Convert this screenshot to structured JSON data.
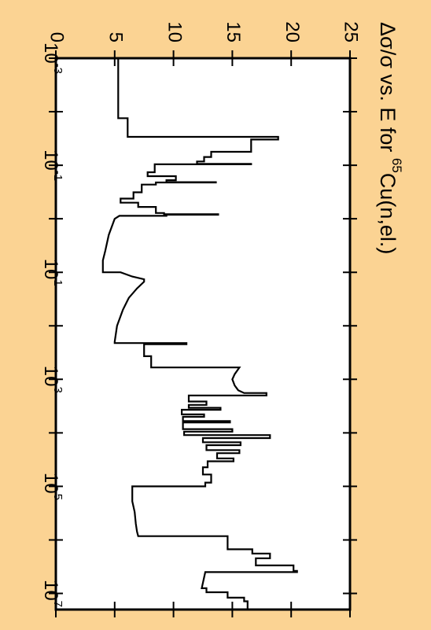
{
  "background_color": "#fbd393",
  "plot_background_color": "#ffffff",
  "line_color": "#000000",
  "chart_data": {
    "type": "line",
    "orientation": "rotated 90 degrees clockwise",
    "title_main": "Δσ/σ vs. E for ",
    "title_superscript": "65",
    "title_nuclide": "Cu(n,el.)",
    "x_scale": "log",
    "x_range": [
      0.001,
      20000000
    ],
    "x_ticks": [
      {
        "value": 0.001,
        "base": "10",
        "exponent": "-3"
      },
      {
        "value": 0.1,
        "base": "10",
        "exponent": "-1"
      },
      {
        "value": 10,
        "base": "10",
        "exponent": "1"
      },
      {
        "value": 1000,
        "base": "10",
        "exponent": "3"
      },
      {
        "value": 100000,
        "base": "10",
        "exponent": "5"
      },
      {
        "value": 10000000,
        "base": "10",
        "exponent": "7"
      }
    ],
    "y_range": [
      0,
      25
    ],
    "y_ticks": [
      "0",
      "5",
      "10",
      "15",
      "20",
      "25"
    ],
    "series": [
      {
        "step": true,
        "points": [
          [
            0.001,
            5.3
          ],
          [
            0.0132,
            5.3
          ],
          [
            0.0132,
            6.1
          ],
          [
            0.0295,
            6.1
          ],
          [
            0.0295,
            18.9
          ],
          [
            0.0331,
            18.9
          ],
          [
            0.0331,
            16.6
          ],
          [
            0.056,
            16.6
          ],
          [
            0.056,
            13.2
          ],
          [
            0.07,
            13.2
          ],
          [
            0.07,
            12.6
          ],
          [
            0.085,
            12.6
          ],
          [
            0.085,
            12.0
          ],
          [
            0.094,
            12.0
          ],
          [
            0.094,
            16.6
          ],
          [
            0.096,
            16.6
          ],
          [
            0.096,
            8.4
          ],
          [
            0.135,
            8.4
          ],
          [
            0.135,
            7.8
          ],
          [
            0.16,
            7.8
          ],
          [
            0.16,
            10.2
          ],
          [
            0.19,
            10.2
          ],
          [
            0.19,
            9.4
          ],
          [
            0.207,
            9.4
          ],
          [
            0.207,
            13.6
          ],
          [
            0.21,
            13.6
          ],
          [
            0.21,
            8.5
          ],
          [
            0.23,
            8.5
          ],
          [
            0.23,
            7.3
          ],
          [
            0.32,
            7.3
          ],
          [
            0.32,
            6.6
          ],
          [
            0.42,
            6.6
          ],
          [
            0.42,
            5.5
          ],
          [
            0.5,
            5.5
          ],
          [
            0.5,
            7.0
          ],
          [
            0.6,
            7.0
          ],
          [
            0.6,
            8.5
          ],
          [
            0.78,
            8.5
          ],
          [
            0.78,
            9.2
          ],
          [
            0.82,
            9.2
          ],
          [
            0.82,
            13.8
          ],
          [
            0.84,
            13.8
          ],
          [
            0.84,
            9.4
          ],
          [
            0.88,
            9.4
          ],
          [
            0.88,
            5.4
          ],
          [
            1.0,
            5.0
          ],
          [
            2.0,
            4.5
          ],
          [
            4.0,
            4.2
          ],
          [
            6.0,
            4.0
          ],
          [
            10.0,
            4.0
          ],
          [
            10.0,
            5.5
          ],
          [
            12.0,
            6.5
          ],
          [
            13.5,
            7.5
          ],
          [
            15.0,
            7.5
          ],
          [
            20.0,
            6.9
          ],
          [
            30.0,
            6.2
          ],
          [
            50.0,
            5.7
          ],
          [
            100.0,
            5.2
          ],
          [
            200.0,
            5.0
          ],
          [
            210.0,
            5.0
          ],
          [
            210.0,
            11.1
          ],
          [
            220.0,
            11.1
          ],
          [
            220.0,
            7.5
          ],
          [
            370.0,
            7.5
          ],
          [
            370.0,
            8.1
          ],
          [
            600.0,
            8.1
          ],
          [
            600.0,
            15.6
          ],
          [
            800.0,
            15.2
          ],
          [
            1000.0,
            15.0
          ],
          [
            1300.0,
            15.2
          ],
          [
            1600.0,
            15.5
          ],
          [
            1800.0,
            16.0
          ],
          [
            1800.0,
            17.9
          ],
          [
            2000.0,
            17.9
          ],
          [
            2000.0,
            11.3
          ],
          [
            2600.0,
            11.3
          ],
          [
            2600.0,
            12.8
          ],
          [
            3000.0,
            12.8
          ],
          [
            3000.0,
            11.3
          ],
          [
            3400.0,
            11.3
          ],
          [
            3400.0,
            14.0
          ],
          [
            3700.0,
            14.0
          ],
          [
            3700.0,
            10.7
          ],
          [
            4500.0,
            10.7
          ],
          [
            4500.0,
            12.6
          ],
          [
            5000.0,
            12.6
          ],
          [
            5000.0,
            10.8
          ],
          [
            6000.0,
            10.8
          ],
          [
            6000.0,
            14.8
          ],
          [
            6400.0,
            14.8
          ],
          [
            6400.0,
            10.8
          ],
          [
            8500.0,
            10.8
          ],
          [
            8500.0,
            15.0
          ],
          [
            9500.0,
            15.0
          ],
          [
            9500.0,
            10.9
          ],
          [
            11000.0,
            10.9
          ],
          [
            11000.0,
            18.2
          ],
          [
            12500.0,
            18.2
          ],
          [
            12500.0,
            12.5
          ],
          [
            15000.0,
            12.5
          ],
          [
            15000.0,
            15.7
          ],
          [
            17000.0,
            15.7
          ],
          [
            17000.0,
            12.8
          ],
          [
            21000.0,
            12.8
          ],
          [
            21000.0,
            15.6
          ],
          [
            24000.0,
            15.6
          ],
          [
            24000.0,
            13.7
          ],
          [
            30000.0,
            13.7
          ],
          [
            30000.0,
            15.1
          ],
          [
            34000.0,
            15.1
          ],
          [
            34000.0,
            12.9
          ],
          [
            44000.0,
            12.9
          ],
          [
            44000.0,
            12.5
          ],
          [
            60000.0,
            12.5
          ],
          [
            60000.0,
            13.2
          ],
          [
            85000.0,
            13.2
          ],
          [
            85000.0,
            12.7
          ],
          [
            100000.0,
            12.7
          ],
          [
            100000.0,
            6.5
          ],
          [
            190000.0,
            6.5
          ],
          [
            300000.0,
            6.7
          ],
          [
            500000.0,
            6.8
          ],
          [
            700000.0,
            6.9
          ],
          [
            850000.0,
            7.0
          ],
          [
            850000.0,
            14.6
          ],
          [
            1500000.0,
            14.6
          ],
          [
            1500000.0,
            16.7
          ],
          [
            1800000.0,
            16.7
          ],
          [
            1800000.0,
            18.2
          ],
          [
            2200000.0,
            18.2
          ],
          [
            2200000.0,
            17.0
          ],
          [
            3000000.0,
            17.0
          ],
          [
            3000000.0,
            20.2
          ],
          [
            3800000.0,
            20.2
          ],
          [
            3800000.0,
            20.5
          ],
          [
            4000000.0,
            20.5
          ],
          [
            4000000.0,
            12.7
          ],
          [
            8000000.0,
            12.4
          ],
          [
            8000000.0,
            12.8
          ],
          [
            9500000.0,
            12.8
          ],
          [
            9500000.0,
            14.6
          ],
          [
            12000000.0,
            14.6
          ],
          [
            12000000.0,
            16.0
          ],
          [
            14000000.0,
            16.0
          ],
          [
            14000000.0,
            16.3
          ],
          [
            20000000.0,
            16.3
          ]
        ]
      }
    ]
  }
}
